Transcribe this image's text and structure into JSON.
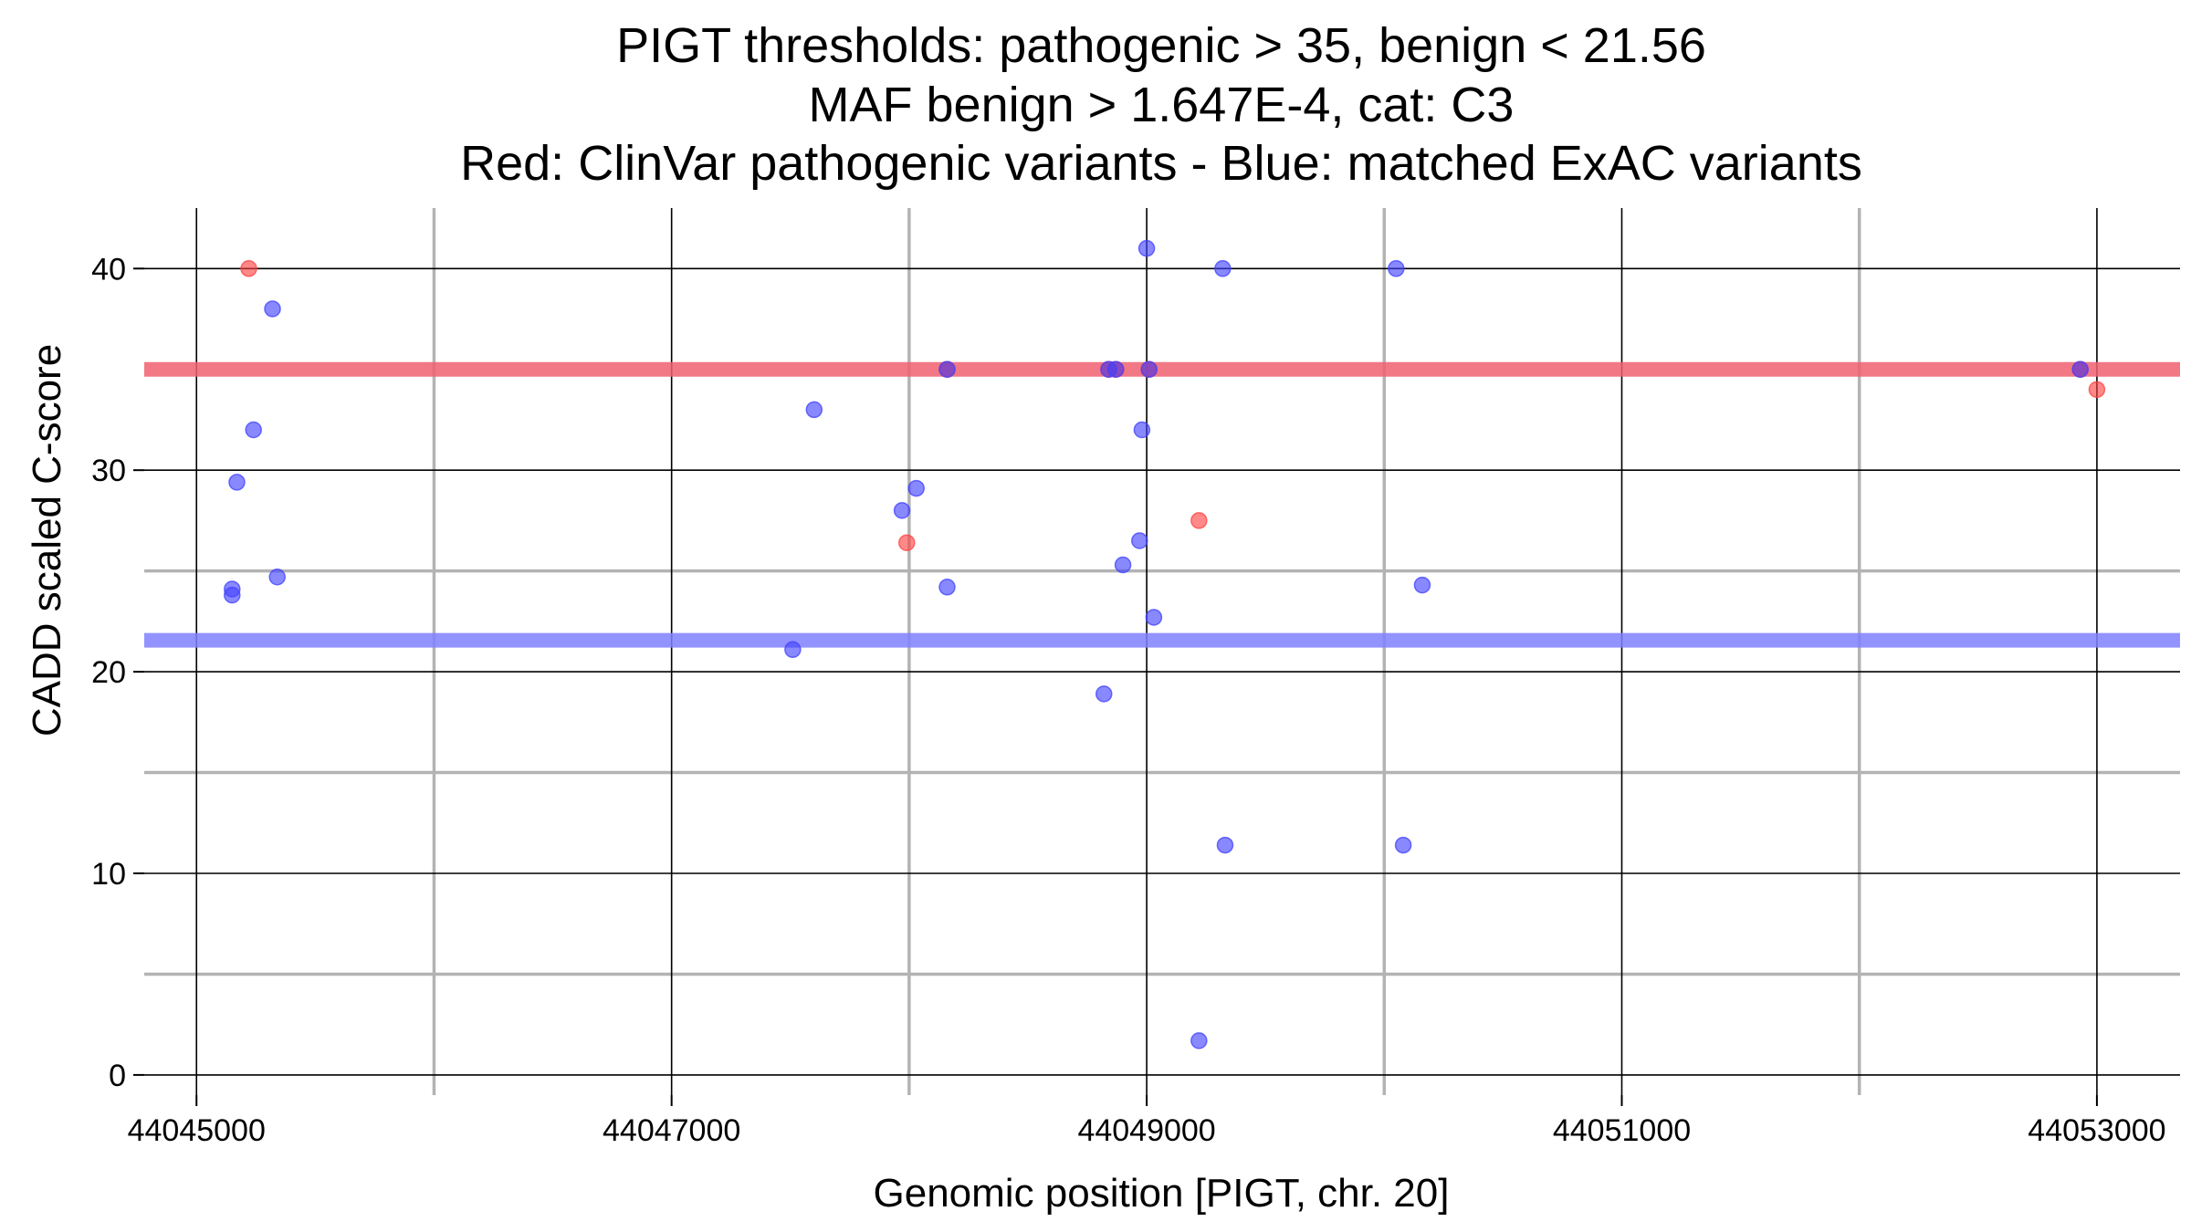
{
  "chart_data": {
    "type": "scatter",
    "title_lines": [
      "PIGT thresholds: pathogenic > 35, benign < 21.56",
      "MAF benign > 1.647E-4, cat: C3",
      "Red: ClinVar pathogenic variants - Blue: matched ExAC variants"
    ],
    "xlabel": "Genomic position [PIGT, chr. 20]",
    "ylabel": "CADD scaled C-score",
    "xlim": [
      44044780,
      44053350
    ],
    "ylim": [
      -1,
      43
    ],
    "x_major_ticks": [
      44045000,
      44047000,
      44049000,
      44051000,
      44053000
    ],
    "x_major_tick_labels": [
      "44045000",
      "44047000",
      "44049000",
      "44051000",
      "44053000"
    ],
    "x_minor_gridlines": [
      44046000,
      44048000,
      44050000,
      44052000
    ],
    "y_major_ticks": [
      0,
      10,
      20,
      30,
      40
    ],
    "y_major_tick_labels": [
      "0",
      "10",
      "20",
      "30",
      "40"
    ],
    "y_minor_gridlines": [
      5,
      15,
      25
    ],
    "grid": true,
    "thresholds": [
      {
        "kind": "pathogenic",
        "value": 35,
        "color": "#f06070"
      },
      {
        "kind": "benign",
        "value": 21.56,
        "color": "#8080ff"
      }
    ],
    "series": [
      {
        "color": "#ff4040",
        "points": [
          {
            "x": 44045220,
            "y": 40
          },
          {
            "x": 44047990,
            "y": 26.4
          },
          {
            "x": 44048160,
            "y": 35
          },
          {
            "x": 44048840,
            "y": 35
          },
          {
            "x": 44048870,
            "y": 35
          },
          {
            "x": 44049010,
            "y": 35
          },
          {
            "x": 44049220,
            "y": 27.5
          },
          {
            "x": 44052930,
            "y": 35
          },
          {
            "x": 44053000,
            "y": 34
          }
        ]
      },
      {
        "color": "#4040ff",
        "points": [
          {
            "x": 44045150,
            "y": 24.1
          },
          {
            "x": 44045150,
            "y": 23.8
          },
          {
            "x": 44045170,
            "y": 29.4
          },
          {
            "x": 44045240,
            "y": 32
          },
          {
            "x": 44045320,
            "y": 38
          },
          {
            "x": 44045340,
            "y": 24.7
          },
          {
            "x": 44047510,
            "y": 21.1
          },
          {
            "x": 44047600,
            "y": 33
          },
          {
            "x": 44047970,
            "y": 28
          },
          {
            "x": 44048030,
            "y": 29.1
          },
          {
            "x": 44048160,
            "y": 24.2
          },
          {
            "x": 44048160,
            "y": 35
          },
          {
            "x": 44048820,
            "y": 18.9
          },
          {
            "x": 44048840,
            "y": 35
          },
          {
            "x": 44048870,
            "y": 35
          },
          {
            "x": 44048900,
            "y": 25.3
          },
          {
            "x": 44048970,
            "y": 26.5
          },
          {
            "x": 44048980,
            "y": 32
          },
          {
            "x": 44049000,
            "y": 41
          },
          {
            "x": 44049010,
            "y": 35
          },
          {
            "x": 44049030,
            "y": 22.7
          },
          {
            "x": 44049220,
            "y": 1.7
          },
          {
            "x": 44049320,
            "y": 40
          },
          {
            "x": 44049330,
            "y": 11.4
          },
          {
            "x": 44050050,
            "y": 40
          },
          {
            "x": 44050080,
            "y": 11.4
          },
          {
            "x": 44050160,
            "y": 24.3
          },
          {
            "x": 44052930,
            "y": 35
          }
        ]
      }
    ]
  }
}
